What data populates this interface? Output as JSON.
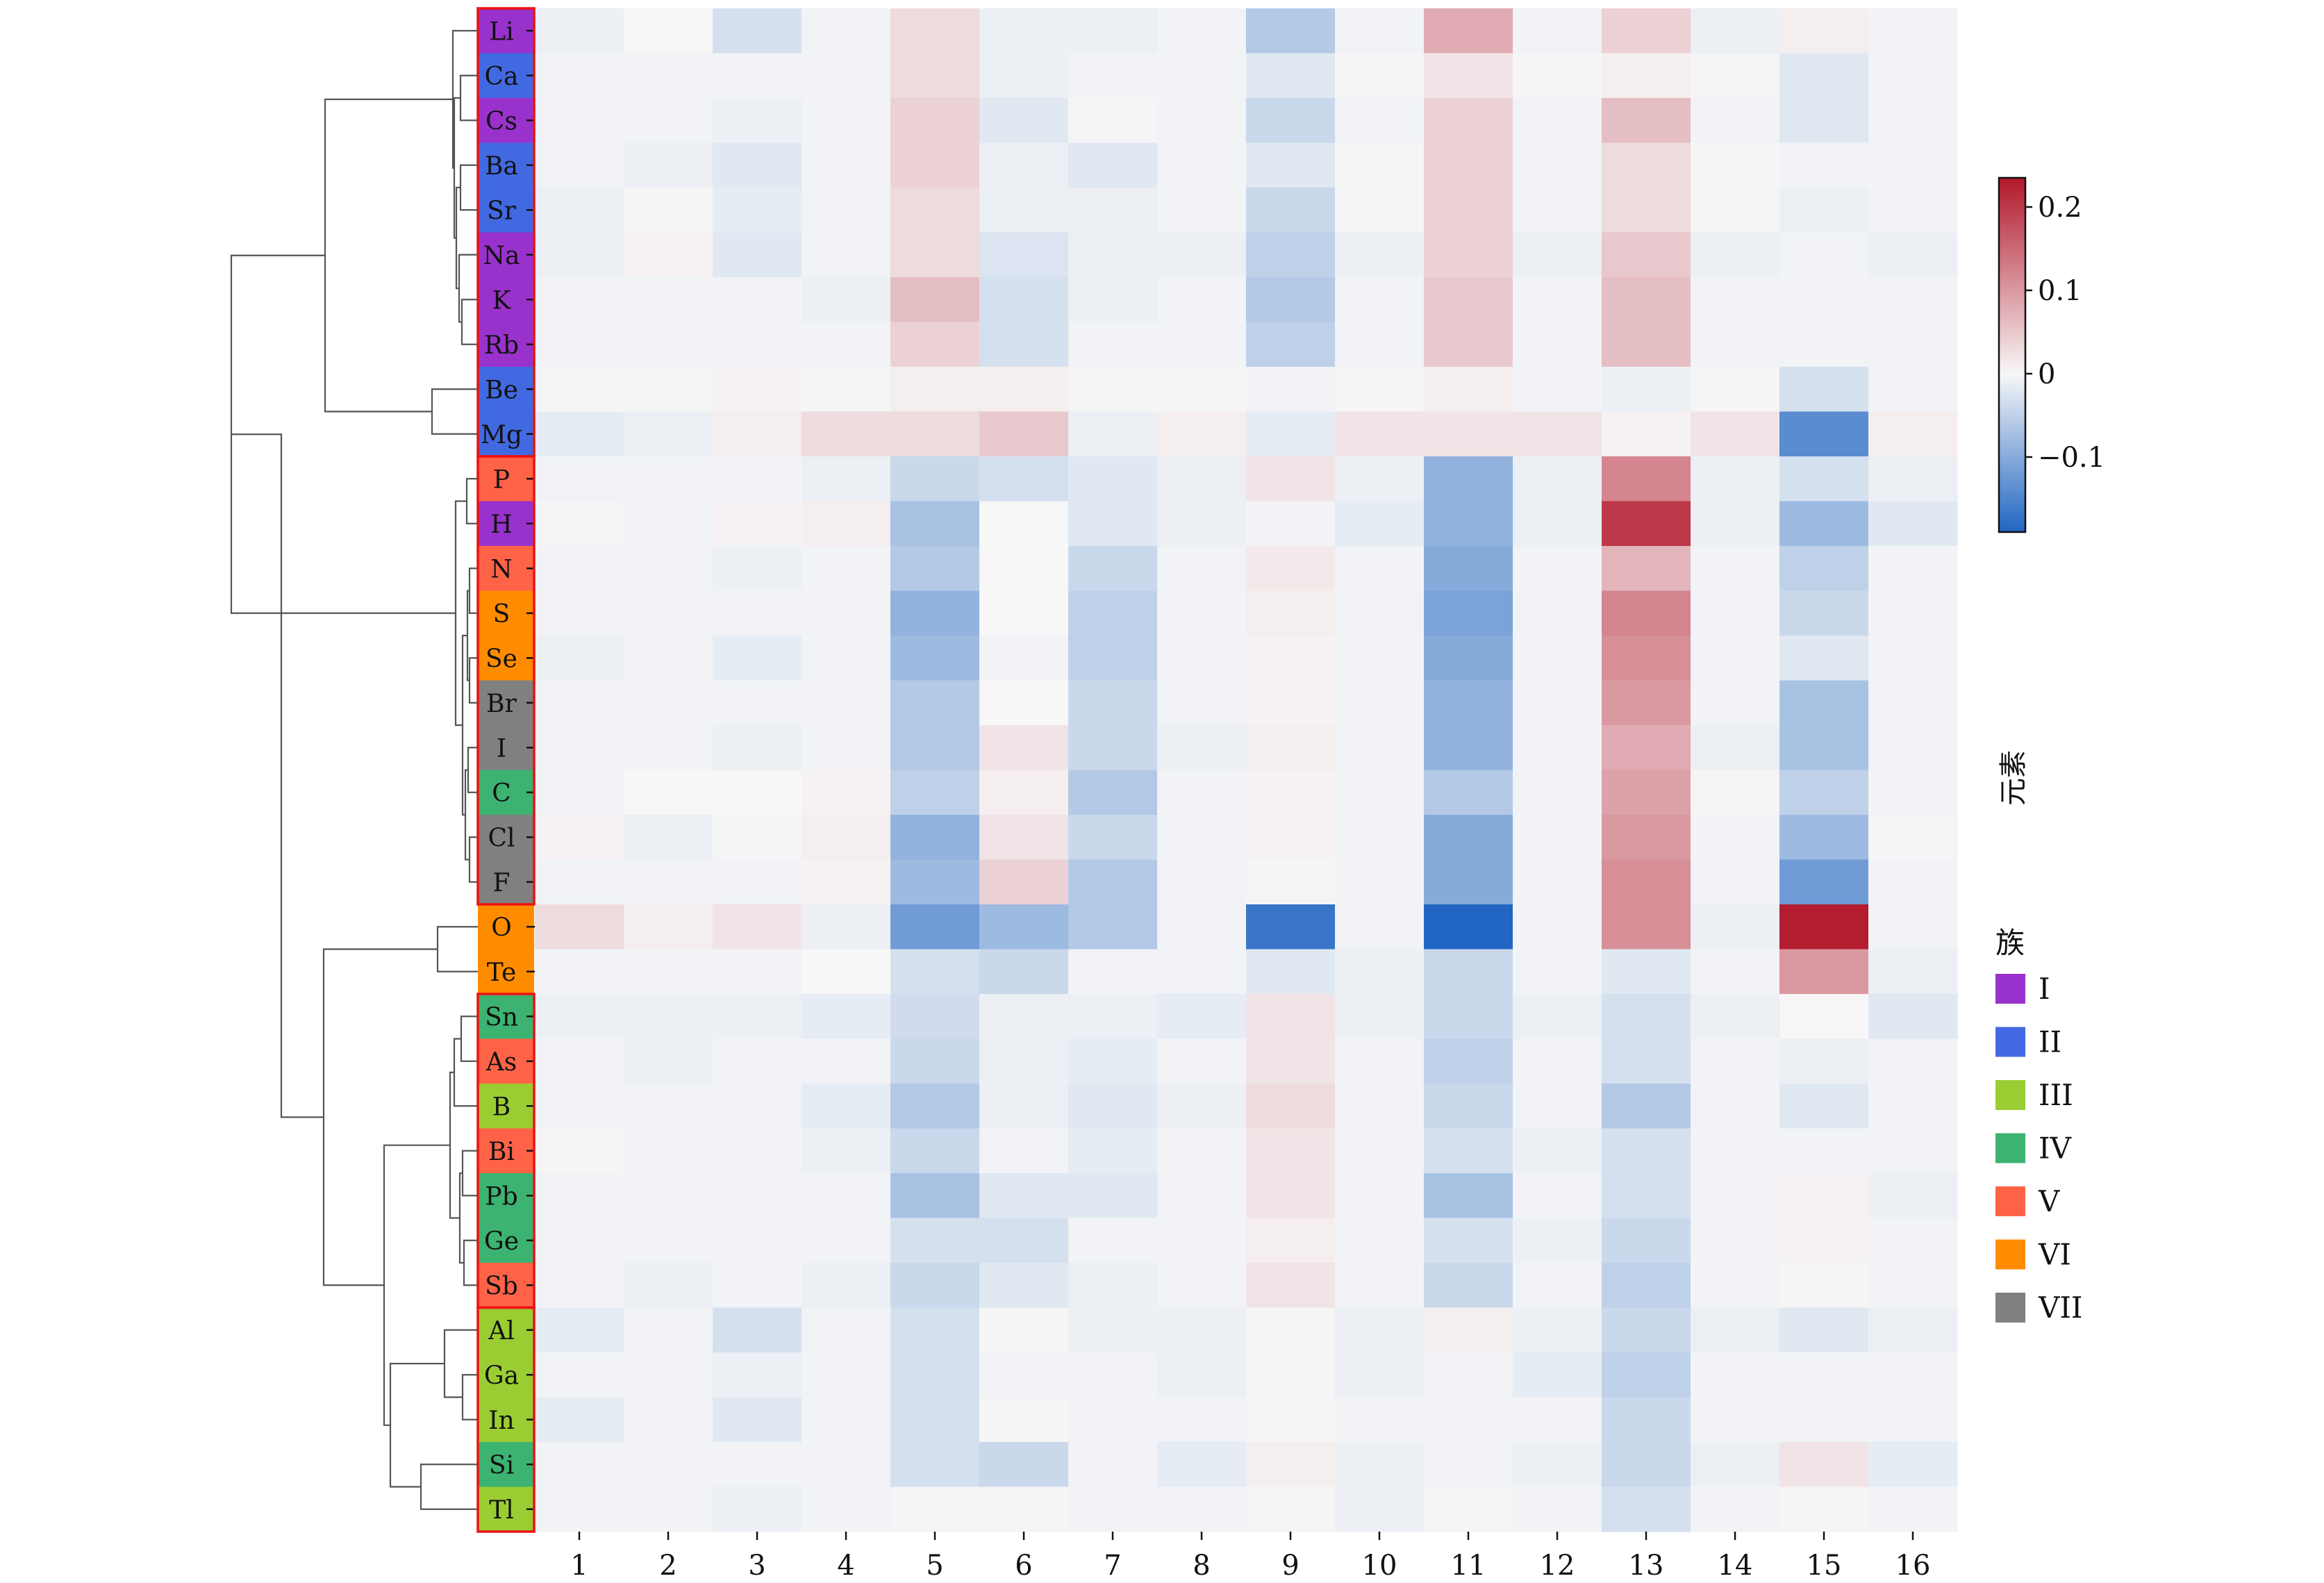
{
  "chart_data": {
    "type": "heatmap",
    "title": "",
    "xlabel": "",
    "ylabel": "元素",
    "grid": false,
    "x": [
      "1",
      "2",
      "3",
      "4",
      "5",
      "6",
      "7",
      "8",
      "9",
      "10",
      "11",
      "12",
      "13",
      "14",
      "15",
      "16"
    ],
    "y": [
      "Li",
      "Ca",
      "Cs",
      "Ba",
      "Sr",
      "Na",
      "K",
      "Rb",
      "Be",
      "Mg",
      "P",
      "H",
      "N",
      "S",
      "Se",
      "Br",
      "I",
      "C",
      "Cl",
      "F",
      "O",
      "Te",
      "Sn",
      "As",
      "B",
      "Bi",
      "Pb",
      "Ge",
      "Sb",
      "Al",
      "Ga",
      "In",
      "Si",
      "Tl"
    ],
    "element_group": [
      "I",
      "II",
      "I",
      "II",
      "II",
      "I",
      "I",
      "I",
      "II",
      "II",
      "V",
      "I",
      "V",
      "VI",
      "VI",
      "VII",
      "VII",
      "IV",
      "VII",
      "VII",
      "VI",
      "VI",
      "IV",
      "V",
      "III",
      "V",
      "IV",
      "IV",
      "V",
      "III",
      "III",
      "III",
      "IV",
      "III"
    ],
    "values": [
      [
        -0.01,
        0.0,
        -0.03,
        -0.005,
        0.03,
        -0.01,
        -0.01,
        -0.005,
        -0.06,
        -0.005,
        0.08,
        -0.005,
        0.04,
        -0.01,
        0.01,
        -0.005
      ],
      [
        -0.005,
        -0.005,
        -0.005,
        -0.005,
        0.03,
        -0.01,
        -0.005,
        -0.005,
        -0.02,
        -0.002,
        0.02,
        -0.002,
        0.01,
        -0.002,
        -0.02,
        -0.005
      ],
      [
        -0.005,
        -0.005,
        -0.01,
        -0.005,
        0.04,
        -0.02,
        -0.002,
        -0.005,
        -0.04,
        -0.005,
        0.04,
        -0.005,
        0.06,
        -0.005,
        -0.02,
        -0.005
      ],
      [
        -0.005,
        -0.01,
        -0.02,
        -0.005,
        0.04,
        -0.01,
        -0.02,
        -0.005,
        -0.02,
        -0.002,
        0.04,
        -0.005,
        0.03,
        -0.002,
        -0.005,
        -0.005
      ],
      [
        -0.01,
        -0.002,
        -0.015,
        -0.005,
        0.03,
        -0.01,
        -0.01,
        -0.005,
        -0.04,
        -0.002,
        0.04,
        -0.005,
        0.03,
        -0.002,
        -0.01,
        -0.005
      ],
      [
        -0.01,
        0.005,
        -0.02,
        -0.005,
        0.03,
        -0.025,
        -0.01,
        -0.01,
        -0.05,
        -0.01,
        0.04,
        -0.01,
        0.05,
        -0.01,
        -0.005,
        -0.01
      ],
      [
        -0.005,
        -0.005,
        -0.005,
        -0.01,
        0.06,
        -0.03,
        -0.01,
        -0.005,
        -0.06,
        -0.005,
        0.05,
        -0.005,
        0.06,
        -0.005,
        -0.005,
        -0.005
      ],
      [
        -0.005,
        -0.005,
        -0.005,
        -0.005,
        0.04,
        -0.03,
        -0.005,
        -0.005,
        -0.05,
        -0.005,
        0.05,
        -0.005,
        0.06,
        -0.005,
        -0.005,
        -0.005
      ],
      [
        0.002,
        0.002,
        0.005,
        -0.002,
        0.01,
        0.01,
        -0.002,
        -0.002,
        -0.005,
        -0.002,
        0.01,
        -0.005,
        -0.01,
        -0.002,
        -0.03,
        -0.005
      ],
      [
        -0.015,
        -0.01,
        0.01,
        0.03,
        0.03,
        0.05,
        -0.01,
        0.01,
        -0.015,
        0.02,
        0.02,
        0.02,
        0.005,
        0.02,
        -0.14,
        0.01
      ],
      [
        -0.005,
        -0.005,
        -0.005,
        -0.01,
        -0.04,
        -0.03,
        -0.02,
        -0.01,
        0.02,
        -0.01,
        -0.09,
        -0.01,
        0.12,
        -0.01,
        -0.03,
        -0.01
      ],
      [
        0.002,
        -0.005,
        0.005,
        0.01,
        -0.07,
        0.0,
        -0.02,
        -0.01,
        -0.005,
        -0.015,
        -0.09,
        -0.01,
        0.2,
        -0.01,
        -0.08,
        -0.02
      ],
      [
        -0.005,
        -0.005,
        -0.01,
        -0.005,
        -0.06,
        0.0,
        -0.04,
        -0.005,
        0.015,
        -0.005,
        -0.1,
        -0.005,
        0.07,
        -0.005,
        -0.05,
        -0.005
      ],
      [
        -0.005,
        -0.005,
        -0.005,
        -0.005,
        -0.09,
        0.0,
        -0.05,
        -0.005,
        0.01,
        -0.005,
        -0.11,
        -0.005,
        0.12,
        -0.005,
        -0.04,
        -0.005
      ],
      [
        -0.01,
        -0.005,
        -0.015,
        -0.005,
        -0.08,
        -0.005,
        -0.05,
        -0.005,
        0.005,
        -0.005,
        -0.1,
        -0.005,
        0.11,
        -0.005,
        -0.02,
        -0.005
      ],
      [
        -0.005,
        -0.005,
        -0.005,
        -0.005,
        -0.06,
        0.0,
        -0.04,
        -0.005,
        0.005,
        -0.005,
        -0.09,
        -0.005,
        0.1,
        -0.005,
        -0.07,
        -0.005
      ],
      [
        -0.005,
        -0.005,
        -0.01,
        -0.005,
        -0.06,
        0.02,
        -0.04,
        -0.01,
        0.01,
        -0.005,
        -0.09,
        -0.005,
        0.08,
        -0.01,
        -0.07,
        -0.005
      ],
      [
        -0.005,
        0.0,
        0.0,
        0.005,
        -0.05,
        0.01,
        -0.06,
        -0.005,
        0.005,
        -0.005,
        -0.06,
        -0.005,
        0.09,
        0.002,
        -0.05,
        -0.005
      ],
      [
        0.005,
        -0.01,
        0.002,
        0.01,
        -0.09,
        0.02,
        -0.04,
        -0.005,
        0.005,
        -0.005,
        -0.1,
        -0.005,
        0.1,
        -0.005,
        -0.08,
        -0.002
      ],
      [
        -0.005,
        -0.005,
        -0.005,
        0.005,
        -0.08,
        0.04,
        -0.06,
        -0.005,
        0.002,
        -0.005,
        -0.1,
        -0.005,
        0.11,
        -0.005,
        -0.12,
        -0.005
      ],
      [
        0.03,
        0.01,
        0.02,
        -0.01,
        -0.12,
        -0.08,
        -0.06,
        -0.005,
        -0.17,
        -0.005,
        -0.19,
        -0.005,
        0.11,
        -0.01,
        0.23,
        -0.005
      ],
      [
        -0.005,
        -0.005,
        -0.005,
        0.0,
        -0.03,
        -0.04,
        -0.005,
        -0.005,
        -0.02,
        -0.01,
        -0.04,
        -0.005,
        -0.02,
        -0.005,
        0.1,
        -0.01
      ],
      [
        -0.01,
        -0.01,
        -0.01,
        -0.015,
        -0.035,
        -0.01,
        -0.01,
        -0.015,
        0.02,
        -0.01,
        -0.04,
        -0.01,
        -0.03,
        -0.01,
        0.0,
        -0.02
      ],
      [
        -0.005,
        -0.01,
        -0.005,
        -0.005,
        -0.04,
        -0.01,
        -0.015,
        -0.005,
        0.02,
        -0.005,
        -0.05,
        -0.005,
        -0.03,
        -0.005,
        -0.01,
        -0.005
      ],
      [
        -0.005,
        -0.005,
        -0.005,
        -0.015,
        -0.06,
        -0.01,
        -0.02,
        -0.01,
        0.03,
        -0.005,
        -0.04,
        -0.005,
        -0.06,
        -0.005,
        -0.02,
        -0.005
      ],
      [
        0.002,
        -0.005,
        -0.005,
        -0.01,
        -0.04,
        -0.005,
        -0.015,
        -0.005,
        0.02,
        -0.005,
        -0.03,
        -0.01,
        -0.03,
        -0.005,
        -0.005,
        -0.005
      ],
      [
        -0.005,
        -0.005,
        -0.005,
        -0.005,
        -0.07,
        -0.02,
        -0.02,
        -0.005,
        0.02,
        -0.005,
        -0.07,
        -0.005,
        -0.03,
        -0.005,
        0.005,
        -0.01
      ],
      [
        -0.005,
        -0.005,
        -0.005,
        -0.005,
        -0.03,
        -0.03,
        -0.005,
        -0.005,
        0.01,
        -0.005,
        -0.03,
        -0.01,
        -0.04,
        -0.005,
        0.005,
        -0.005
      ],
      [
        -0.005,
        -0.01,
        -0.005,
        -0.01,
        -0.04,
        -0.02,
        -0.01,
        -0.005,
        0.02,
        -0.005,
        -0.04,
        -0.005,
        -0.05,
        -0.005,
        -0.002,
        -0.005
      ],
      [
        -0.015,
        -0.005,
        -0.03,
        -0.005,
        -0.03,
        -0.002,
        -0.01,
        -0.01,
        0.002,
        -0.01,
        0.01,
        -0.01,
        -0.04,
        -0.01,
        -0.02,
        -0.01
      ],
      [
        -0.005,
        -0.005,
        -0.01,
        -0.005,
        -0.03,
        -0.005,
        -0.005,
        -0.01,
        0.002,
        -0.01,
        -0.005,
        -0.015,
        -0.05,
        -0.005,
        -0.005,
        -0.005
      ],
      [
        -0.015,
        -0.005,
        -0.02,
        -0.005,
        -0.03,
        -0.002,
        -0.005,
        -0.005,
        0.002,
        -0.005,
        -0.005,
        -0.005,
        -0.04,
        -0.005,
        -0.005,
        -0.005
      ],
      [
        -0.005,
        -0.005,
        -0.005,
        -0.005,
        -0.03,
        -0.04,
        -0.005,
        -0.015,
        0.01,
        -0.01,
        -0.005,
        -0.01,
        -0.04,
        -0.01,
        0.02,
        -0.015
      ],
      [
        -0.005,
        -0.005,
        -0.01,
        -0.005,
        -0.002,
        -0.002,
        -0.005,
        -0.005,
        0.002,
        -0.01,
        -0.002,
        -0.005,
        -0.03,
        -0.005,
        -0.002,
        -0.005
      ]
    ],
    "colorbar": {
      "ticks": [
        0.2,
        0.1,
        0,
        -0.1
      ],
      "tick_labels": [
        "0.2",
        "0.1",
        "0",
        "−0.1"
      ],
      "range": [
        -0.19,
        0.235
      ],
      "colors": [
        "#2166c2",
        "#f7f7f7",
        "#b2182b"
      ]
    },
    "legend": {
      "title": "族",
      "placement": "right",
      "items": [
        {
          "label": "I",
          "color": "#9932cc"
        },
        {
          "label": "II",
          "color": "#4169e1"
        },
        {
          "label": "III",
          "color": "#9acd32"
        },
        {
          "label": "IV",
          "color": "#3cb371"
        },
        {
          "label": "V",
          "color": "#ff6347"
        },
        {
          "label": "VI",
          "color": "#ff8c00"
        },
        {
          "label": "VII",
          "color": "#808080"
        }
      ]
    },
    "cluster_boxes": [
      [
        0,
        9
      ],
      [
        10,
        19
      ],
      [
        22,
        28
      ],
      [
        29,
        33
      ]
    ],
    "cluster_box_color": "#ee1111",
    "dendrogram_color": "#555555"
  }
}
